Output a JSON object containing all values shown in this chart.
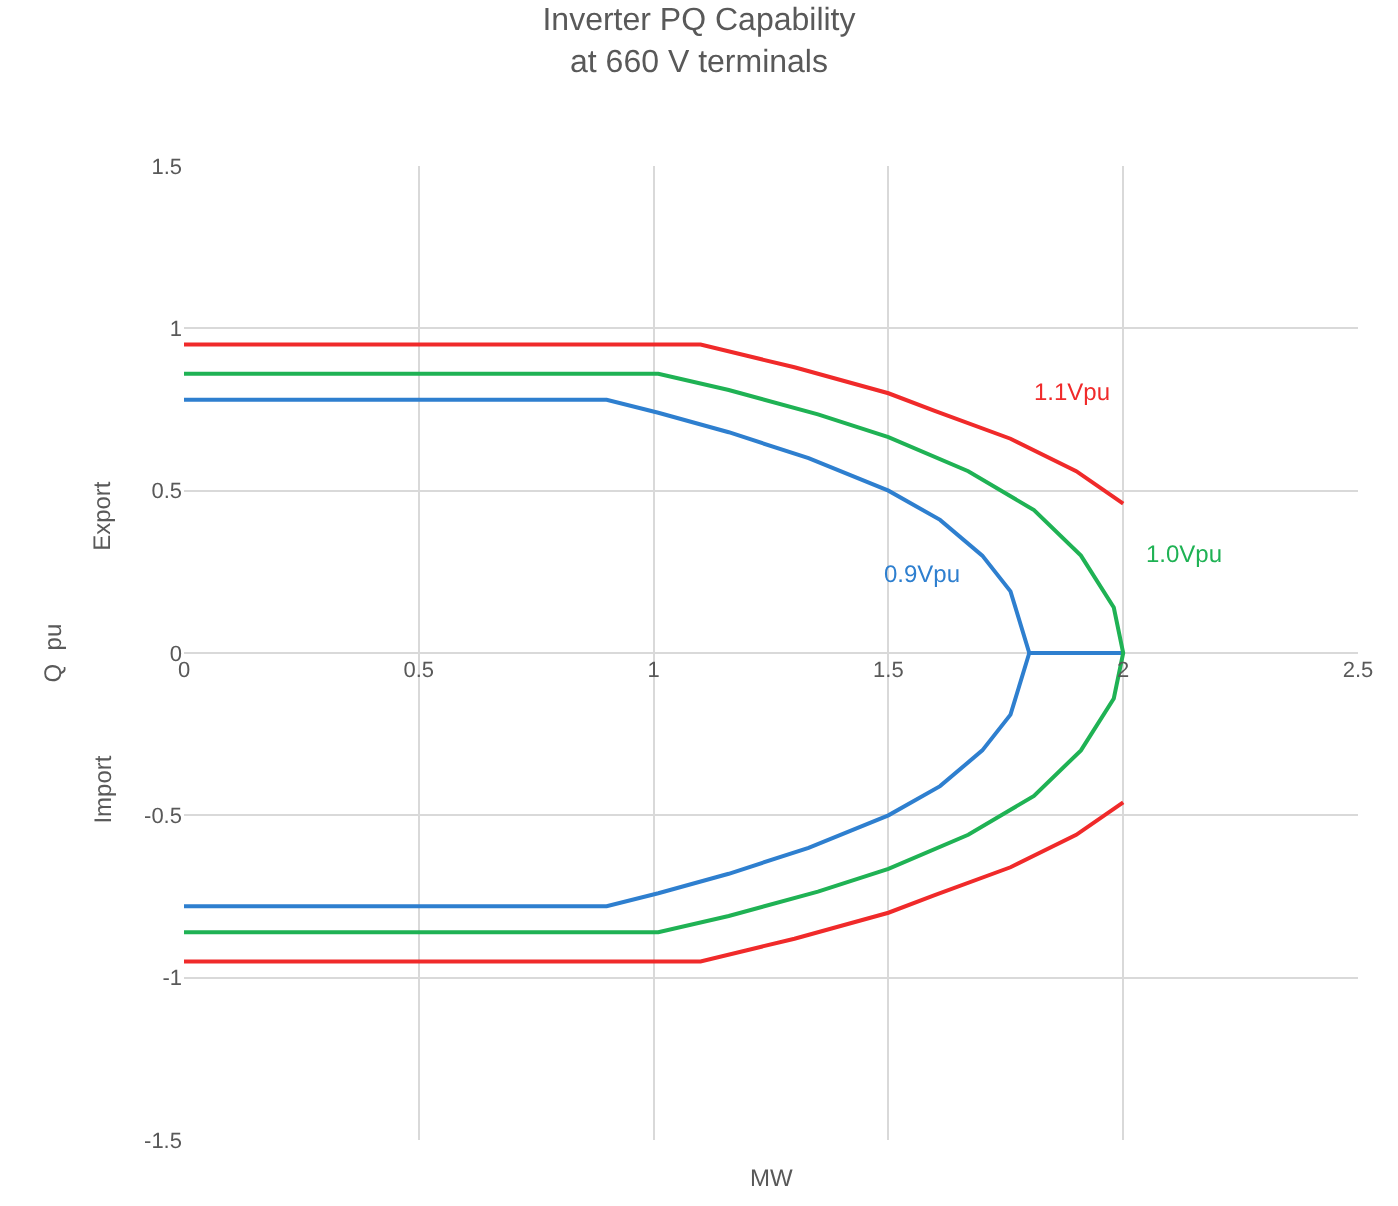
{
  "chart_data": {
    "type": "line",
    "title": "Inverter PQ Capability\nat 660 V terminals",
    "xlabel": "MW",
    "ylabel": "Q  pu",
    "annotations": [
      "Export",
      "Import"
    ],
    "xlim": [
      0,
      2.5
    ],
    "xticks": [
      0,
      0.5,
      1,
      1.5,
      2,
      2.5
    ],
    "ylim": [
      -1.5,
      1.5
    ],
    "yticks": [
      -1.5,
      -1,
      -0.5,
      0,
      0.5,
      1,
      1.5
    ],
    "grid": true,
    "legend": false,
    "marker": "none",
    "line_style": "solid",
    "series": [
      {
        "name": "0.9Vpu",
        "color": "#2e7fcf",
        "x": [
          0,
          0.9,
          1.01,
          1.16,
          1.33,
          1.5,
          1.61,
          1.7,
          1.76,
          1.8,
          2,
          null,
          1.8,
          1.76,
          1.7,
          1.61,
          1.5,
          1.33,
          1.16,
          1.01,
          0.9,
          0
        ],
        "values": [
          0.78,
          0.78,
          0.74,
          0.68,
          0.6,
          0.5,
          0.41,
          0.3,
          0.19,
          0,
          0,
          null,
          0,
          -0.19,
          -0.3,
          -0.41,
          -0.5,
          -0.6,
          -0.68,
          -0.74,
          -0.78,
          -0.78
        ]
      },
      {
        "name": "1.0Vpu",
        "color": "#1fb254",
        "x": [
          0,
          1.01,
          1.16,
          1.35,
          1.5,
          1.67,
          1.81,
          1.91,
          1.98,
          2,
          1.98,
          1.91,
          1.81,
          1.67,
          1.5,
          1.35,
          1.16,
          1.01,
          0
        ],
        "values": [
          0.86,
          0.86,
          0.81,
          0.735,
          0.665,
          0.56,
          0.44,
          0.3,
          0.14,
          0,
          -0.14,
          -0.3,
          -0.44,
          -0.56,
          -0.665,
          -0.735,
          -0.81,
          -0.86,
          -0.86
        ]
      },
      {
        "name": "1.1Vpu",
        "color": "#f02a2a",
        "x": [
          0,
          1.1,
          1.3,
          1.5,
          1.6,
          1.76,
          1.9,
          2,
          null,
          2,
          1.9,
          1.76,
          1.6,
          1.5,
          1.3,
          1.1,
          0
        ],
        "values": [
          0.95,
          0.95,
          0.88,
          0.8,
          0.745,
          0.66,
          0.56,
          0.46,
          null,
          -0.46,
          -0.56,
          -0.66,
          -0.745,
          -0.8,
          -0.88,
          -0.95,
          -0.95
        ]
      }
    ]
  }
}
